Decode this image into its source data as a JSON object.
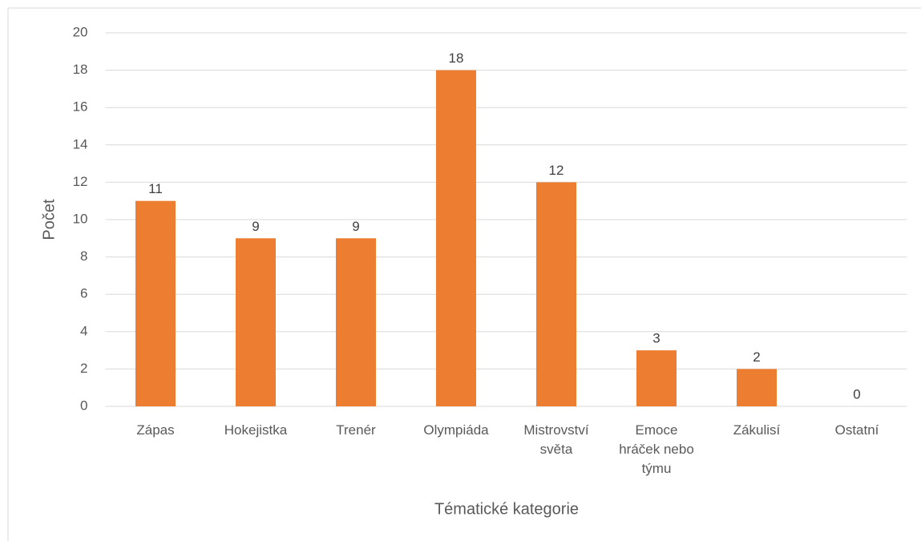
{
  "chart_data": {
    "type": "bar",
    "x_label": "Tématické kategorie",
    "y_label": "Počet",
    "categories": [
      "Zápas",
      "Hokejistka",
      "Trenér",
      "Olympiáda",
      "Mistrovství světa",
      "Emoce hráček nebo týmu",
      "Zákulisí",
      "Ostatní"
    ],
    "values": [
      11,
      9,
      9,
      18,
      12,
      3,
      2,
      0
    ],
    "color": "#ed7d31",
    "ylim": [
      0,
      20
    ],
    "yticks": [
      0,
      2,
      4,
      6,
      8,
      10,
      12,
      14,
      16,
      18,
      20
    ],
    "grid": true
  }
}
